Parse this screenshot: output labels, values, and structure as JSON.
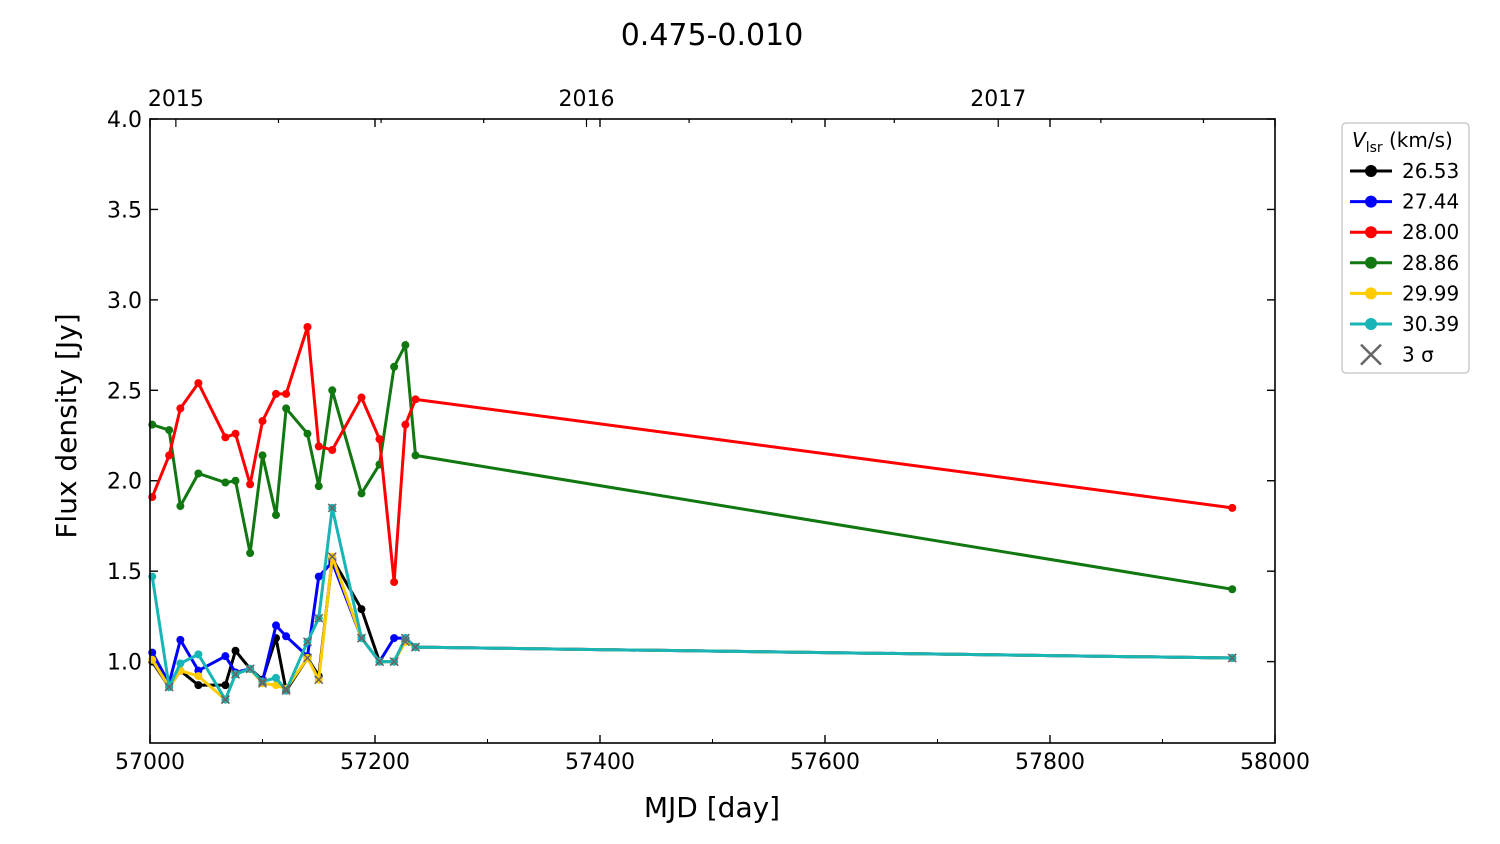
{
  "chart_data": {
    "type": "line",
    "title": "0.475-0.010",
    "xlabel": "MJD [day]",
    "ylabel": "Flux density [Jy]",
    "xlim": [
      57000,
      58000
    ],
    "ylim": [
      0.55,
      4.0
    ],
    "xticks": [
      "57000",
      "57200",
      "57400",
      "57600",
      "57800",
      "58000"
    ],
    "yticks": [
      "1.0",
      "1.5",
      "2.0",
      "2.5",
      "3.0",
      "3.5",
      "4.0"
    ],
    "top_axis": {
      "ticks": [
        {
          "label": "2015",
          "mjd": 57023
        },
        {
          "label": "2016",
          "mjd": 57388
        },
        {
          "label": "2017",
          "mjd": 57754
        }
      ]
    },
    "legend": {
      "title_main": "V",
      "title_sub": "lsr",
      "title_unit": " (km/s)",
      "placement": "right-outside-top",
      "sigma_label": "3 σ"
    },
    "x": [
      57002,
      57017,
      57027,
      57043,
      57067,
      57076,
      57089,
      57100,
      57112,
      57121,
      57140,
      57150,
      57162,
      57188,
      57204,
      57217,
      57227,
      57236,
      57962
    ],
    "series": [
      {
        "name": "26.53",
        "color": "#000000",
        "values": [
          1.0,
          0.86,
          0.95,
          0.87,
          0.87,
          1.06,
          0.96,
          0.9,
          1.13,
          0.84,
          1.02,
          0.92,
          1.57,
          1.29,
          1.0,
          1.0,
          1.12,
          1.08,
          1.02
        ]
      },
      {
        "name": "27.44",
        "color": "#0000ff",
        "values": [
          1.05,
          0.88,
          1.12,
          0.95,
          1.03,
          0.94,
          0.96,
          0.89,
          1.2,
          1.14,
          1.03,
          1.47,
          1.55,
          1.13,
          1.0,
          1.13,
          1.13,
          1.08,
          1.02
        ]
      },
      {
        "name": "28.00",
        "color": "#ff0000",
        "values": [
          1.91,
          2.14,
          2.4,
          2.54,
          2.24,
          2.26,
          1.98,
          2.33,
          2.48,
          2.48,
          2.85,
          2.19,
          2.17,
          2.46,
          2.23,
          1.44,
          2.31,
          2.45,
          1.85
        ]
      },
      {
        "name": "28.86",
        "color": "#117711",
        "values": [
          2.31,
          2.28,
          1.86,
          2.04,
          1.99,
          2.0,
          1.6,
          2.14,
          1.81,
          2.4,
          2.26,
          1.97,
          2.5,
          1.93,
          2.09,
          2.63,
          2.75,
          2.14,
          1.4
        ]
      },
      {
        "name": "29.99",
        "color": "#ffcc00",
        "values": [
          1.01,
          0.86,
          0.95,
          0.92,
          0.79,
          0.93,
          0.96,
          0.88,
          0.87,
          0.85,
          1.02,
          0.9,
          1.58,
          1.13,
          1.0,
          1.0,
          1.11,
          1.08,
          1.02
        ]
      },
      {
        "name": "30.39",
        "color": "#17b5b5",
        "values": [
          1.47,
          0.86,
          0.99,
          1.04,
          0.79,
          0.93,
          0.96,
          0.89,
          0.91,
          0.84,
          1.11,
          1.24,
          1.85,
          1.13,
          1.0,
          1.0,
          1.13,
          1.08,
          1.02
        ]
      }
    ],
    "sigma3_indices": [
      1,
      4,
      5,
      6,
      7,
      9,
      10,
      11,
      12,
      13,
      14,
      15,
      16,
      17,
      18
    ],
    "sigma3_color": "#666666",
    "grid": false
  }
}
